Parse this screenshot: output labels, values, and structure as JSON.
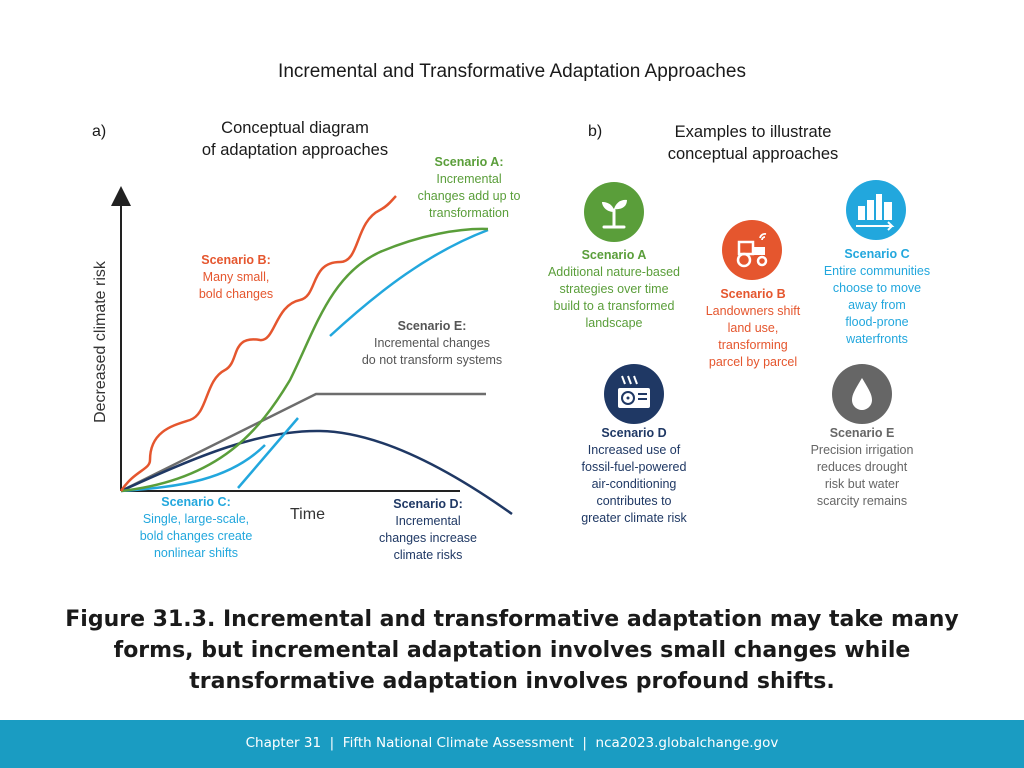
{
  "title": "Incremental and Transformative Adaptation Approaches",
  "panel_a": {
    "label": "a)",
    "heading_line1": "Conceptual diagram",
    "heading_line2": "of adaptation approaches",
    "y_axis_label": "Decreased climate risk",
    "x_axis_label": "Time",
    "scenarios": {
      "A": {
        "title": "Scenario A:",
        "lines": [
          "Incremental",
          "changes add up to",
          "transformation"
        ],
        "color": "#5a9e3a"
      },
      "B": {
        "title": "Scenario B:",
        "lines": [
          "Many small,",
          "bold changes"
        ],
        "color": "#e5562e"
      },
      "C": {
        "title": "Scenario C:",
        "lines": [
          "Single, large-scale,",
          "bold changes create",
          "nonlinear shifts"
        ],
        "color": "#22a7dd"
      },
      "D": {
        "title": "Scenario D:",
        "lines": [
          "Incremental",
          "changes increase",
          "climate risks"
        ],
        "color": "#1f3864"
      },
      "E": {
        "title": "Scenario E:",
        "lines": [
          "Incremental changes",
          "do not transform systems"
        ],
        "color": "#666666"
      }
    }
  },
  "panel_b": {
    "label": "b)",
    "heading_line1": "Examples to illustrate",
    "heading_line2": "conceptual approaches",
    "examples": {
      "A": {
        "title": "Scenario A",
        "lines": [
          "Additional nature-based",
          "strategies over time",
          "build to a transformed",
          "landscape"
        ],
        "color": "#5a9e3a",
        "icon": "sprout-icon"
      },
      "B": {
        "title": "Scenario B",
        "lines": [
          "Landowners shift",
          "land use,",
          "transforming",
          "parcel by parcel"
        ],
        "color": "#e5562e",
        "icon": "tractor-icon"
      },
      "C": {
        "title": "Scenario C",
        "lines": [
          "Entire communities",
          "choose to move",
          "away from",
          "flood-prone",
          "waterfronts"
        ],
        "color": "#22a7dd",
        "icon": "city-relocation-icon"
      },
      "D": {
        "title": "Scenario D",
        "lines": [
          "Increased use of",
          "fossil-fuel-powered",
          "air-conditioning",
          "contributes to",
          "greater climate risk"
        ],
        "color": "#1f3864",
        "icon": "air-conditioner-icon"
      },
      "E": {
        "title": "Scenario E",
        "lines": [
          "Precision irrigation",
          "reduces drought",
          "risk but water",
          "scarcity remains"
        ],
        "color": "#666666",
        "icon": "water-drop-icon"
      }
    }
  },
  "caption": {
    "line1": "Figure 31.3. Incremental and transformative adaptation may take many",
    "line2": "forms, but incremental adaptation involves small changes while",
    "line3": "transformative adaptation involves profound shifts."
  },
  "footer": {
    "chapter": "Chapter 31",
    "separator": "|",
    "report": "Fifth National Climate Assessment",
    "url": "nca2023.globalchange.gov"
  }
}
